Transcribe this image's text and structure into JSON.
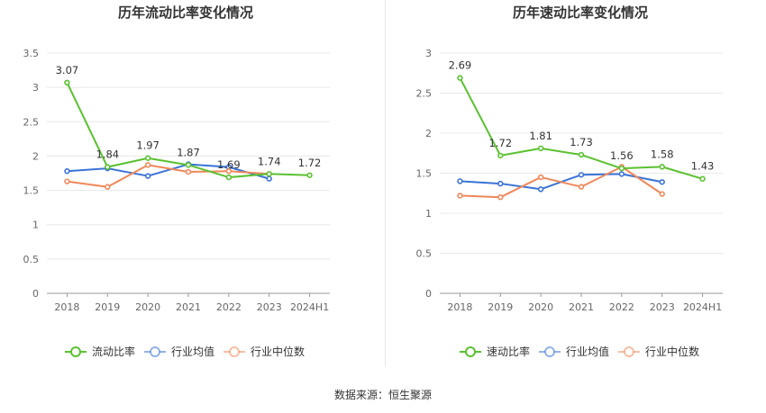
{
  "chart_data": [
    {
      "type": "line",
      "title": "历年流动比率变化情况",
      "categories": [
        "2018",
        "2019",
        "2020",
        "2021",
        "2022",
        "2023",
        "2024H1"
      ],
      "ylim": [
        0,
        3.5
      ],
      "yticks": [
        "0",
        "0.5",
        "1",
        "1.5",
        "2",
        "2.5",
        "3",
        "3.5"
      ],
      "series": [
        {
          "name": "流动比率",
          "color": "#5ac130",
          "values": [
            3.07,
            1.84,
            1.97,
            1.87,
            1.69,
            1.74,
            1.72
          ],
          "labels": [
            "3.07",
            "1.84",
            "1.97",
            "1.87",
            "1.69",
            "1.74",
            "1.72"
          ]
        },
        {
          "name": "行业均值",
          "color": "#3a73d6",
          "values": [
            1.78,
            1.82,
            1.71,
            1.88,
            1.84,
            1.67,
            null
          ]
        },
        {
          "name": "行业中位数",
          "color": "#f0885a",
          "values": [
            1.63,
            1.55,
            1.87,
            1.77,
            1.78,
            1.74,
            null
          ]
        }
      ]
    },
    {
      "type": "line",
      "title": "历年速动比率变化情况",
      "categories": [
        "2018",
        "2019",
        "2020",
        "2021",
        "2022",
        "2023",
        "2024H1"
      ],
      "ylim": [
        0,
        3
      ],
      "yticks": [
        "0",
        "0.5",
        "1",
        "1.5",
        "2",
        "2.5",
        "3"
      ],
      "series": [
        {
          "name": "速动比率",
          "color": "#5ac130",
          "values": [
            2.69,
            1.72,
            1.81,
            1.73,
            1.56,
            1.58,
            1.43
          ],
          "labels": [
            "2.69",
            "1.72",
            "1.81",
            "1.73",
            "1.56",
            "1.58",
            "1.43"
          ]
        },
        {
          "name": "行业均值",
          "color": "#3a73d6",
          "values": [
            1.4,
            1.37,
            1.3,
            1.48,
            1.49,
            1.39,
            null
          ]
        },
        {
          "name": "行业中位数",
          "color": "#f0885a",
          "values": [
            1.22,
            1.2,
            1.45,
            1.33,
            1.58,
            1.24,
            null
          ]
        }
      ]
    }
  ],
  "source_text": "数据来源：恒生聚源"
}
